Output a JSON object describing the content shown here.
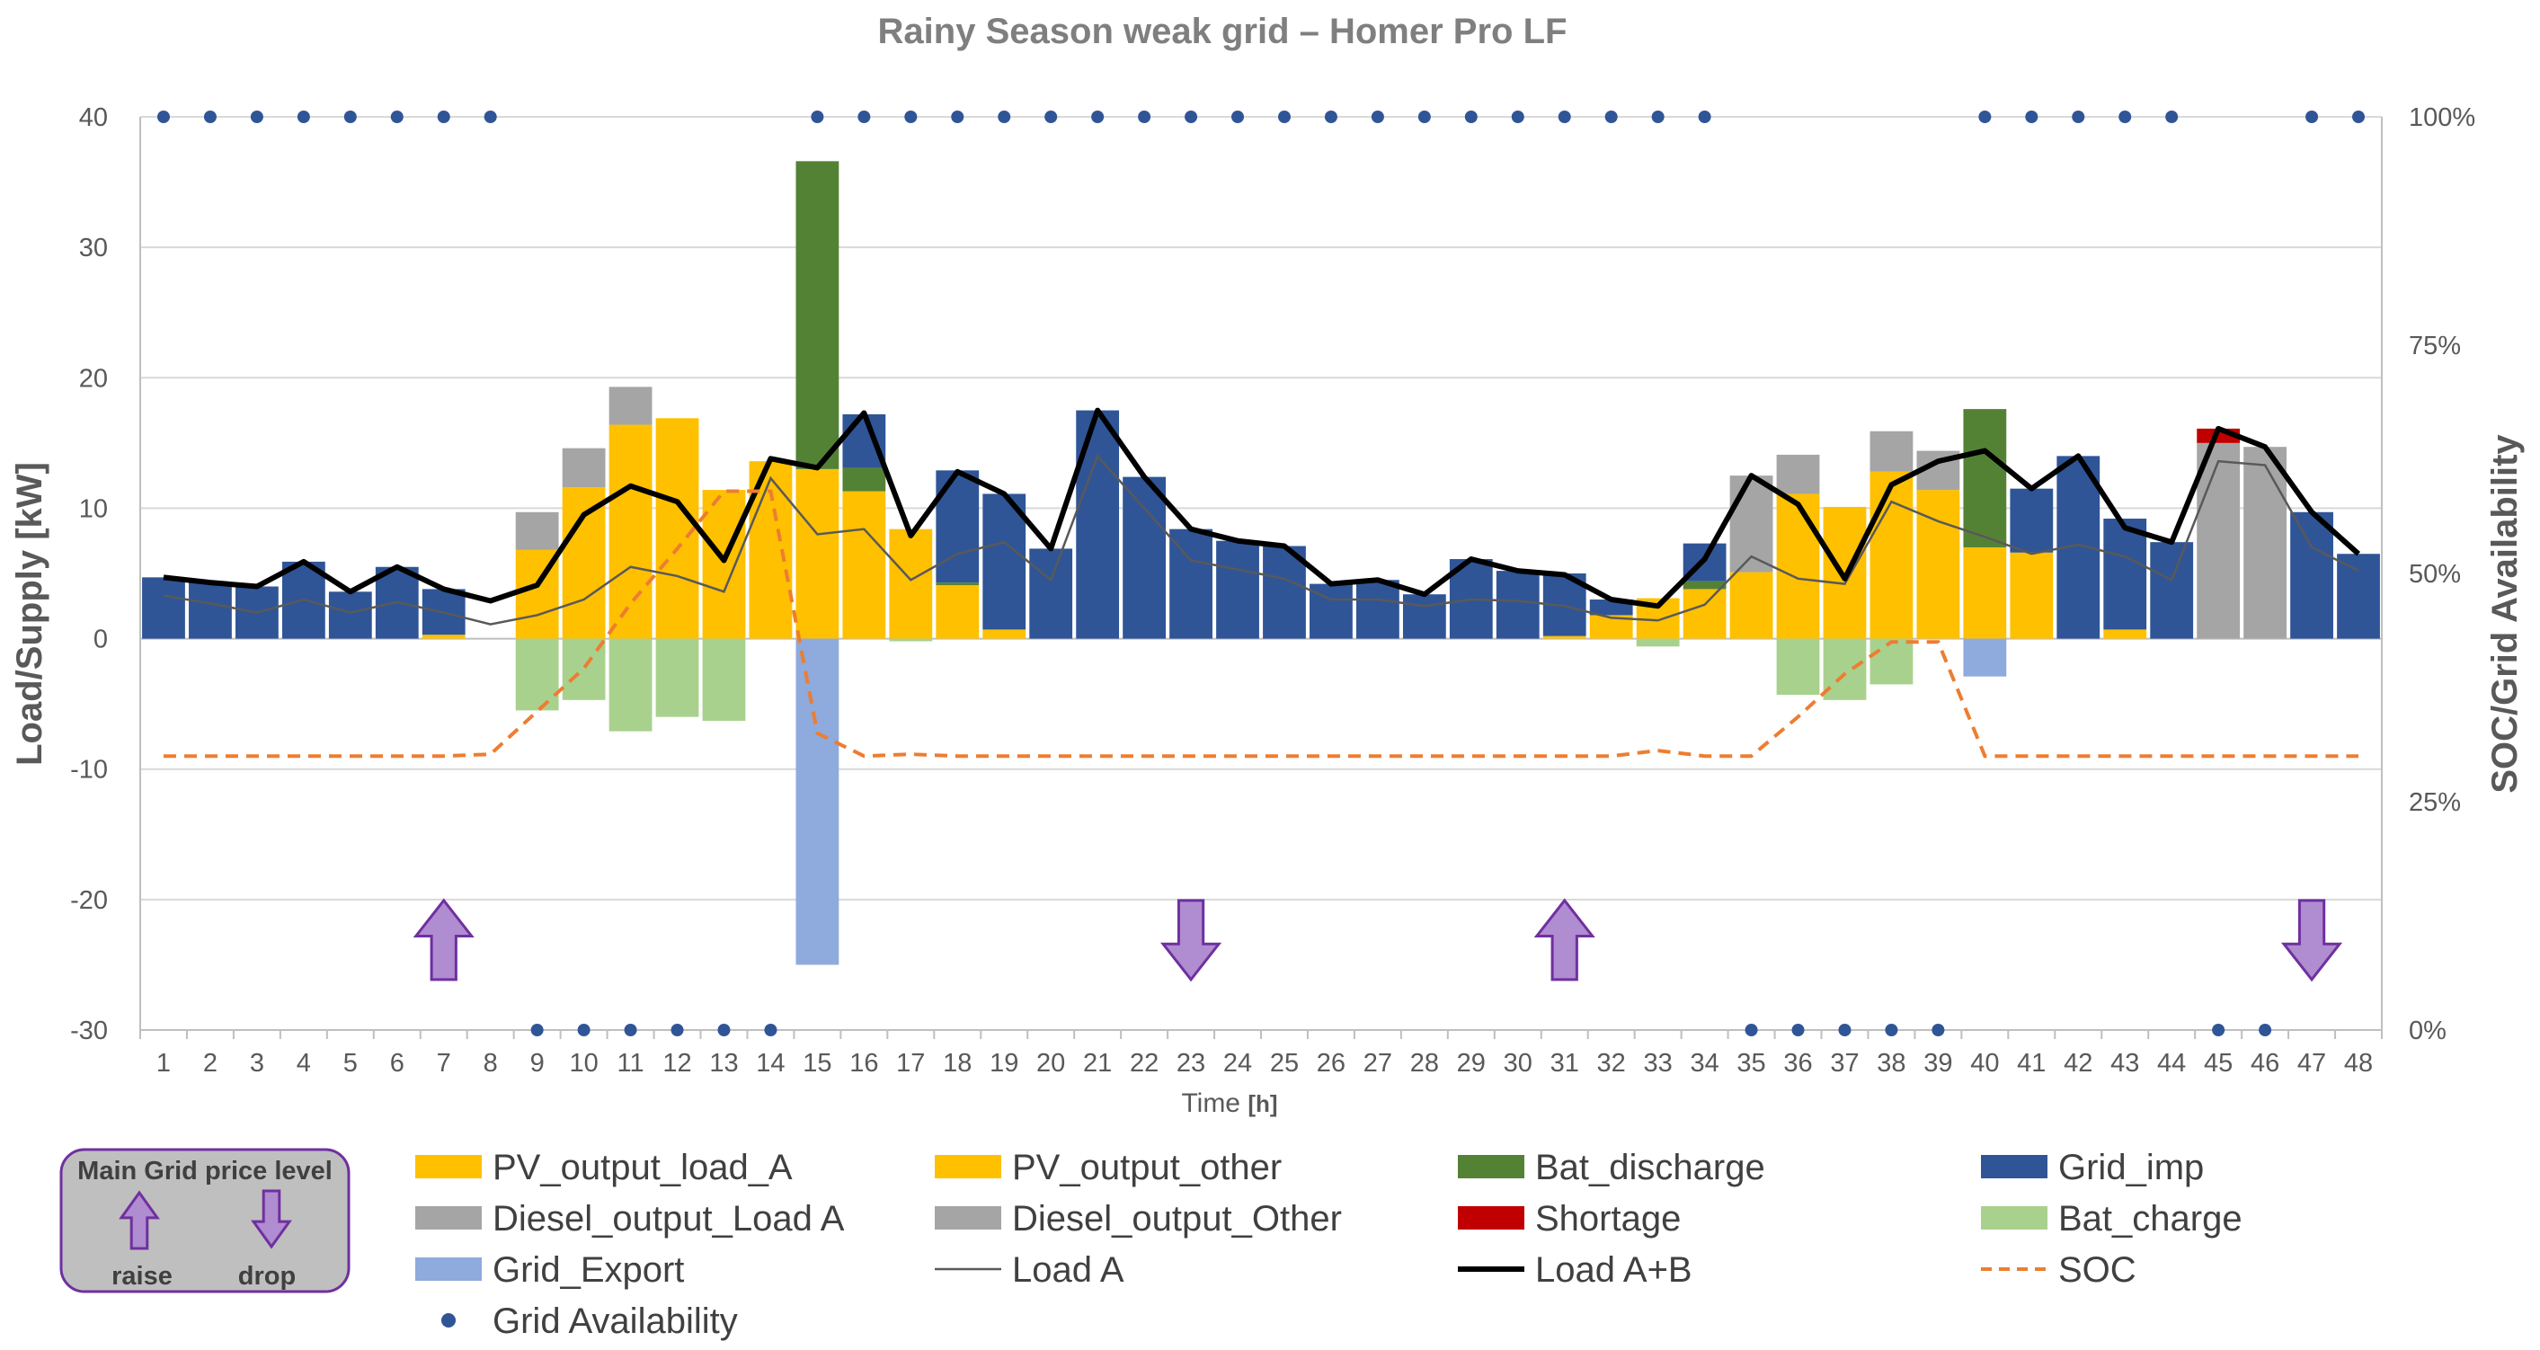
{
  "chart_data": {
    "type": "bar",
    "title": "Rainy Season weak grid – Homer Pro LF",
    "xlabel": "Time",
    "xlabel_unit": "[h]",
    "ylabel": "Load/Supply [kW]",
    "y2label": "SOC/Grid Availability",
    "ylim": [
      -30,
      40
    ],
    "y2lim": [
      0,
      100
    ],
    "yticks": [
      "-30",
      "-20",
      "-10",
      "0",
      "10",
      "20",
      "30",
      "40"
    ],
    "y2ticks": [
      "0%",
      "25%",
      "50%",
      "75%",
      "100%"
    ],
    "categories": [
      "1",
      "2",
      "3",
      "4",
      "5",
      "6",
      "7",
      "8",
      "9",
      "10",
      "11",
      "12",
      "13",
      "14",
      "15",
      "16",
      "17",
      "18",
      "19",
      "20",
      "21",
      "22",
      "23",
      "24",
      "25",
      "26",
      "27",
      "28",
      "29",
      "30",
      "31",
      "32",
      "33",
      "34",
      "35",
      "36",
      "37",
      "38",
      "39",
      "40",
      "41",
      "42",
      "43",
      "44",
      "45",
      "46",
      "47",
      "48"
    ],
    "series": [
      {
        "name": "PV_output_load_A",
        "kind": "bar",
        "color": "#FFC000",
        "values": [
          0,
          0,
          0,
          0,
          0,
          0,
          0.3,
          0,
          6.8,
          11.6,
          16.4,
          16.9,
          11.4,
          13.6,
          13.0,
          11.3,
          8.4,
          4.1,
          0.7,
          0,
          0,
          0,
          0,
          0,
          0,
          0,
          0,
          0,
          0,
          0,
          0.2,
          1.8,
          3.1,
          3.8,
          5.1,
          11.1,
          10.1,
          12.8,
          11.4,
          7.0,
          6.6,
          0,
          0.7,
          0,
          0,
          0,
          0,
          0
        ]
      },
      {
        "name": "PV_output_other",
        "kind": "bar",
        "color": "#FFC000",
        "values": [
          0,
          0,
          0,
          0,
          0,
          0,
          0,
          0,
          0,
          0,
          0,
          0,
          0,
          0,
          0,
          0,
          0,
          0,
          0,
          0,
          0,
          0,
          0,
          0,
          0,
          0,
          0,
          0,
          0,
          0,
          0,
          0,
          0,
          0,
          0,
          0,
          0,
          0,
          0,
          0,
          0,
          0,
          0,
          0,
          0,
          0,
          0,
          0
        ]
      },
      {
        "name": "Bat_discharge",
        "kind": "bar",
        "color": "#548235",
        "values": [
          0,
          0,
          0,
          0,
          0,
          0,
          0,
          0,
          0,
          0,
          0,
          0,
          0,
          0,
          23.6,
          1.8,
          0,
          0.2,
          0,
          0,
          0,
          0,
          0,
          0,
          0,
          0,
          0,
          0,
          0,
          0,
          0,
          0,
          0,
          0.6,
          0,
          0,
          0,
          0,
          0,
          10.6,
          0,
          0,
          0,
          0,
          0,
          0,
          0,
          0
        ]
      },
      {
        "name": "Grid_imp",
        "kind": "bar",
        "color": "#2F5597",
        "values": [
          4.7,
          4.3,
          4.0,
          5.9,
          3.6,
          5.5,
          3.5,
          0,
          0,
          0,
          0,
          0,
          0,
          0,
          0,
          4.1,
          0,
          8.6,
          10.4,
          6.9,
          17.5,
          12.4,
          8.4,
          7.5,
          7.1,
          4.2,
          4.5,
          3.4,
          6.1,
          5.2,
          4.8,
          1.2,
          0,
          2.9,
          0,
          0,
          0,
          0,
          0,
          0,
          4.9,
          14.0,
          8.5,
          7.4,
          0,
          0,
          9.7,
          6.5
        ]
      },
      {
        "name": "Diesel_output_Load A",
        "kind": "bar",
        "color": "#A5A5A5",
        "values": [
          0,
          0,
          0,
          0,
          0,
          0,
          0,
          0,
          2.9,
          3.0,
          2.9,
          0,
          0,
          0,
          0,
          0,
          0,
          0,
          0,
          0,
          0,
          0,
          0,
          0,
          0,
          0,
          0,
          0,
          0,
          0,
          0,
          0,
          0,
          0,
          7.4,
          3.0,
          0,
          3.1,
          3.0,
          0,
          0,
          0,
          0,
          0,
          15.0,
          14.7,
          0,
          0
        ]
      },
      {
        "name": "Diesel_output_Other",
        "kind": "bar",
        "color": "#A5A5A5",
        "values": [
          0,
          0,
          0,
          0,
          0,
          0,
          0,
          0,
          0,
          0,
          0,
          0,
          0,
          0,
          0,
          0,
          0,
          0,
          0,
          0,
          0,
          0,
          0,
          0,
          0,
          0,
          0,
          0,
          0,
          0,
          0,
          0,
          0,
          0,
          0,
          0,
          0,
          0,
          0,
          0,
          0,
          0,
          0,
          0,
          0,
          0,
          0,
          0
        ]
      },
      {
        "name": "Shortage",
        "kind": "bar",
        "color": "#C00000",
        "values": [
          0,
          0,
          0,
          0,
          0,
          0,
          0,
          0,
          0,
          0,
          0,
          0,
          0,
          0,
          0,
          0,
          0,
          0,
          0,
          0,
          0,
          0,
          0,
          0,
          0,
          0,
          0,
          0,
          0,
          0,
          0,
          0,
          0,
          0,
          0,
          0,
          0,
          0,
          0,
          0,
          0,
          0,
          0,
          0,
          1.1,
          0,
          0,
          0
        ]
      },
      {
        "name": "Bat_charge",
        "kind": "bar",
        "color": "#A9D18E",
        "values": [
          0,
          0,
          0,
          0,
          0,
          0,
          0,
          0,
          -5.5,
          -4.7,
          -7.1,
          -6.0,
          -6.3,
          0,
          0,
          0,
          -0.2,
          0,
          0,
          0,
          0,
          0,
          0,
          0,
          0,
          0,
          0,
          0,
          0,
          0,
          0,
          0,
          -0.6,
          0,
          0,
          -4.3,
          -4.7,
          -3.5,
          0,
          0,
          0,
          0,
          0,
          0,
          0,
          0,
          0,
          0
        ]
      },
      {
        "name": "Grid_Export",
        "kind": "bar",
        "color": "#8FAADC",
        "values": [
          0,
          0,
          0,
          0,
          0,
          0,
          0,
          0,
          0,
          0,
          0,
          0,
          0,
          0,
          -25.0,
          0,
          0,
          0,
          0,
          0,
          0,
          0,
          0,
          0,
          0,
          0,
          0,
          0,
          0,
          0,
          0,
          0,
          0,
          0,
          0,
          0,
          0,
          0,
          0,
          -2.9,
          0,
          0,
          0,
          0,
          0,
          0,
          0,
          0
        ]
      },
      {
        "name": "Load A",
        "kind": "line",
        "color": "#595959",
        "values": [
          3.3,
          2.7,
          2.0,
          3.0,
          2.0,
          2.8,
          2.0,
          1.1,
          1.8,
          3.0,
          5.5,
          4.8,
          3.6,
          12.3,
          8.0,
          8.4,
          4.5,
          6.5,
          7.4,
          4.5,
          14.0,
          10.0,
          6.0,
          5.3,
          4.6,
          3.0,
          3.0,
          2.5,
          3.0,
          2.9,
          2.5,
          1.6,
          1.4,
          2.6,
          6.3,
          4.6,
          4.2,
          10.5,
          9.0,
          7.8,
          6.5,
          7.2,
          6.3,
          4.5,
          13.6,
          13.3,
          7.0,
          5.2
        ]
      },
      {
        "name": "Load A+B",
        "kind": "line",
        "color": "#000000",
        "values": [
          4.7,
          4.3,
          4.0,
          5.9,
          3.6,
          5.5,
          3.8,
          2.9,
          4.1,
          9.5,
          11.7,
          10.5,
          6.0,
          13.8,
          13.1,
          17.3,
          7.9,
          12.8,
          11.1,
          6.9,
          17.5,
          12.4,
          8.4,
          7.5,
          7.1,
          4.2,
          4.5,
          3.4,
          6.1,
          5.2,
          4.9,
          3.0,
          2.5,
          6.1,
          12.5,
          10.3,
          4.6,
          11.8,
          13.6,
          14.4,
          11.5,
          14.0,
          8.5,
          7.4,
          16.1,
          14.7,
          9.7,
          6.5
        ]
      },
      {
        "name": "SOC",
        "kind": "line",
        "color": "#ED7D31",
        "values": [
          30,
          30,
          30,
          30,
          30,
          30,
          30,
          30.2,
          34.9,
          39.6,
          46.7,
          52.7,
          59.0,
          59.0,
          32.5,
          30,
          30.2,
          30,
          30,
          30,
          30,
          30,
          30,
          30,
          30,
          30,
          30,
          30,
          30,
          30,
          30,
          30,
          30.6,
          30,
          30,
          34.3,
          39.0,
          42.5,
          42.5,
          30,
          30,
          30,
          30,
          30,
          30,
          30,
          30,
          30
        ]
      },
      {
        "name": "Grid Availability",
        "kind": "scatter",
        "color": "#2F5597",
        "values": [
          100,
          100,
          100,
          100,
          100,
          100,
          100,
          100,
          0,
          0,
          0,
          0,
          0,
          0,
          100,
          100,
          100,
          100,
          100,
          100,
          100,
          100,
          100,
          100,
          100,
          100,
          100,
          100,
          100,
          100,
          100,
          100,
          100,
          100,
          0,
          0,
          0,
          0,
          0,
          100,
          100,
          100,
          100,
          100,
          0,
          0,
          100,
          100
        ]
      }
    ],
    "legend": {
      "position": "bottom",
      "entries": [
        "PV_output_load_A",
        "PV_output_other",
        "Bat_discharge",
        "Grid_imp",
        "Diesel_output_Load A",
        "Diesel_output_Other",
        "Shortage",
        "Bat_charge",
        "Grid_Export",
        "Load A",
        "Load A+B",
        "SOC",
        "Grid Availability"
      ]
    },
    "arrows": [
      {
        "hour": 7,
        "direction": "up"
      },
      {
        "hour": 23,
        "direction": "down"
      },
      {
        "hour": 31,
        "direction": "up"
      },
      {
        "hour": 47,
        "direction": "down"
      }
    ],
    "arrow_color": "#B08CD0",
    "price_box": {
      "title": "Main Grid price level",
      "raise": "raise",
      "drop": "drop"
    }
  }
}
